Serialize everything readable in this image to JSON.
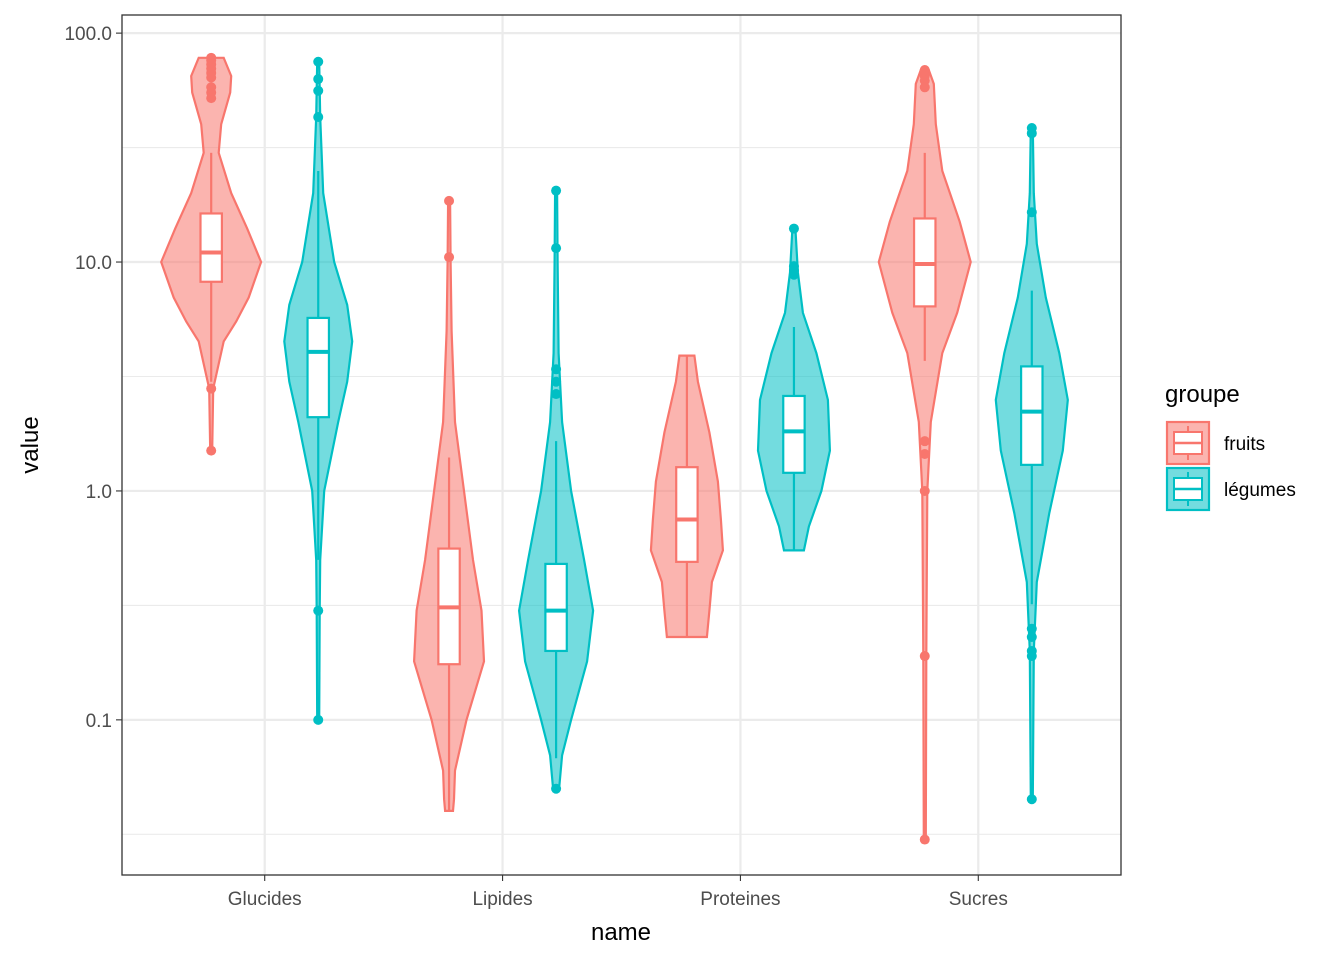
{
  "chart_data": {
    "type": "violin",
    "xlabel": "name",
    "ylabel": "value",
    "y_scale": "log10",
    "ylim": [
      0.021,
      120
    ],
    "y_ticks": [
      {
        "value": 0.1,
        "label": "0.1"
      },
      {
        "value": 1,
        "label": "1.0"
      },
      {
        "value": 10,
        "label": "10.0"
      },
      {
        "value": 100,
        "label": "100.0"
      }
    ],
    "categories": [
      "Glucides",
      "Lipides",
      "Proteines",
      "Sucres"
    ],
    "grid": true,
    "legend": {
      "title": "groupe",
      "position": "right",
      "entries": [
        {
          "name": "fruits",
          "color": "#F8766D"
        },
        {
          "name": "légumes",
          "color": "#00BFC4"
        }
      ]
    },
    "series": [
      {
        "name": "fruits",
        "color": "#F8766D",
        "fill": "#F8766D",
        "groups": [
          {
            "category": "Glucides",
            "box": {
              "q1": 8.2,
              "median": 11,
              "q3": 16.3,
              "whisker_low": 3.0,
              "whisker_high": 30
            },
            "outliers": [
              78,
              76,
              73,
              70,
              67,
              64,
              58,
              55,
              52,
              2.8,
              1.5
            ],
            "violin": [
              [
                1.5,
                0.02
              ],
              [
                2.8,
                0.04
              ],
              [
                4.5,
                0.25
              ],
              [
                5.5,
                0.5
              ],
              [
                7,
                0.75
              ],
              [
                10,
                1.0
              ],
              [
                14,
                0.72
              ],
              [
                20,
                0.4
              ],
              [
                30,
                0.15
              ],
              [
                40,
                0.2
              ],
              [
                55,
                0.38
              ],
              [
                65,
                0.4
              ],
              [
                78,
                0.25
              ]
            ]
          },
          {
            "category": "Lipides",
            "box": {
              "q1": 0.175,
              "median": 0.31,
              "q3": 0.56,
              "whisker_low": 0.04,
              "whisker_high": 1.4
            },
            "outliers": [
              18.5,
              10.5
            ],
            "violin": [
              [
                0.04,
                0.08
              ],
              [
                0.045,
                0.1
              ],
              [
                0.06,
                0.12
              ],
              [
                0.1,
                0.35
              ],
              [
                0.18,
                0.7
              ],
              [
                0.3,
                0.65
              ],
              [
                0.5,
                0.48
              ],
              [
                1.0,
                0.3
              ],
              [
                2,
                0.12
              ],
              [
                5,
                0.05
              ],
              [
                10,
                0.03
              ],
              [
                18.5,
                0.02
              ]
            ]
          },
          {
            "category": "Proteines",
            "box": {
              "q1": 0.49,
              "median": 0.75,
              "q3": 1.27,
              "whisker_low": 0.23,
              "whisker_high": 3.9
            },
            "outliers": [],
            "violin": [
              [
                0.23,
                0.4
              ],
              [
                0.3,
                0.45
              ],
              [
                0.4,
                0.5
              ],
              [
                0.55,
                0.72
              ],
              [
                0.75,
                0.68
              ],
              [
                1.1,
                0.62
              ],
              [
                1.8,
                0.45
              ],
              [
                3,
                0.22
              ],
              [
                3.9,
                0.15
              ]
            ]
          },
          {
            "category": "Sucres",
            "box": {
              "q1": 6.4,
              "median": 9.8,
              "q3": 15.5,
              "whisker_low": 3.7,
              "whisker_high": 30
            },
            "outliers": [
              69,
              67,
              65,
              62,
              58,
              1.65,
              1.45,
              1.0,
              0.19,
              0.03
            ],
            "violin": [
              [
                0.03,
                0.02
              ],
              [
                0.19,
                0.03
              ],
              [
                1.0,
                0.05
              ],
              [
                2,
                0.12
              ],
              [
                4,
                0.35
              ],
              [
                6,
                0.65
              ],
              [
                10,
                0.92
              ],
              [
                15,
                0.7
              ],
              [
                25,
                0.35
              ],
              [
                40,
                0.22
              ],
              [
                60,
                0.18
              ],
              [
                69,
                0.08
              ]
            ]
          }
        ]
      },
      {
        "name": "légumes",
        "color": "#00BFC4",
        "fill": "#00BFC4",
        "groups": [
          {
            "category": "Glucides",
            "box": {
              "q1": 2.1,
              "median": 4.05,
              "q3": 5.7,
              "whisker_low": 0.5,
              "whisker_high": 25
            },
            "outliers": [
              75,
              63,
              56,
              43,
              0.3,
              0.1
            ],
            "violin": [
              [
                0.1,
                0.02
              ],
              [
                0.3,
                0.03
              ],
              [
                0.5,
                0.04
              ],
              [
                1,
                0.12
              ],
              [
                2,
                0.4
              ],
              [
                3,
                0.58
              ],
              [
                4.5,
                0.68
              ],
              [
                6.5,
                0.58
              ],
              [
                10,
                0.32
              ],
              [
                20,
                0.1
              ],
              [
                43,
                0.04
              ],
              [
                75,
                0.02
              ]
            ]
          },
          {
            "category": "Lipides",
            "box": {
              "q1": 0.2,
              "median": 0.3,
              "q3": 0.48,
              "whisker_low": 0.068,
              "whisker_high": 1.65
            },
            "outliers": [
              20.5,
              11.5,
              3.4,
              3.0,
              2.65,
              0.05
            ],
            "violin": [
              [
                0.05,
                0.06
              ],
              [
                0.07,
                0.12
              ],
              [
                0.1,
                0.3
              ],
              [
                0.18,
                0.62
              ],
              [
                0.3,
                0.74
              ],
              [
                0.5,
                0.56
              ],
              [
                1.0,
                0.3
              ],
              [
                2,
                0.12
              ],
              [
                4,
                0.05
              ],
              [
                10,
                0.03
              ],
              [
                20.5,
                0.02
              ]
            ]
          },
          {
            "category": "Proteines",
            "box": {
              "q1": 1.2,
              "median": 1.82,
              "q3": 2.6,
              "whisker_low": 0.55,
              "whisker_high": 5.2
            },
            "outliers": [
              14,
              9.6,
              9.2,
              8.8
            ],
            "violin": [
              [
                0.55,
                0.2
              ],
              [
                0.7,
                0.3
              ],
              [
                1.0,
                0.55
              ],
              [
                1.5,
                0.72
              ],
              [
                2.5,
                0.68
              ],
              [
                4,
                0.45
              ],
              [
                6,
                0.18
              ],
              [
                9,
                0.08
              ],
              [
                14,
                0.03
              ]
            ]
          },
          {
            "category": "Sucres",
            "box": {
              "q1": 1.3,
              "median": 2.22,
              "q3": 3.5,
              "whisker_low": 0.32,
              "whisker_high": 7.5
            },
            "outliers": [
              38.5,
              36.5,
              16.5,
              0.25,
              0.23,
              0.2,
              0.19,
              0.045
            ],
            "violin": [
              [
                0.045,
                0.02
              ],
              [
                0.2,
                0.04
              ],
              [
                0.4,
                0.1
              ],
              [
                0.8,
                0.35
              ],
              [
                1.5,
                0.62
              ],
              [
                2.5,
                0.72
              ],
              [
                4,
                0.55
              ],
              [
                7,
                0.28
              ],
              [
                12,
                0.1
              ],
              [
                20,
                0.04
              ],
              [
                38.5,
                0.02
              ]
            ]
          }
        ]
      }
    ]
  }
}
